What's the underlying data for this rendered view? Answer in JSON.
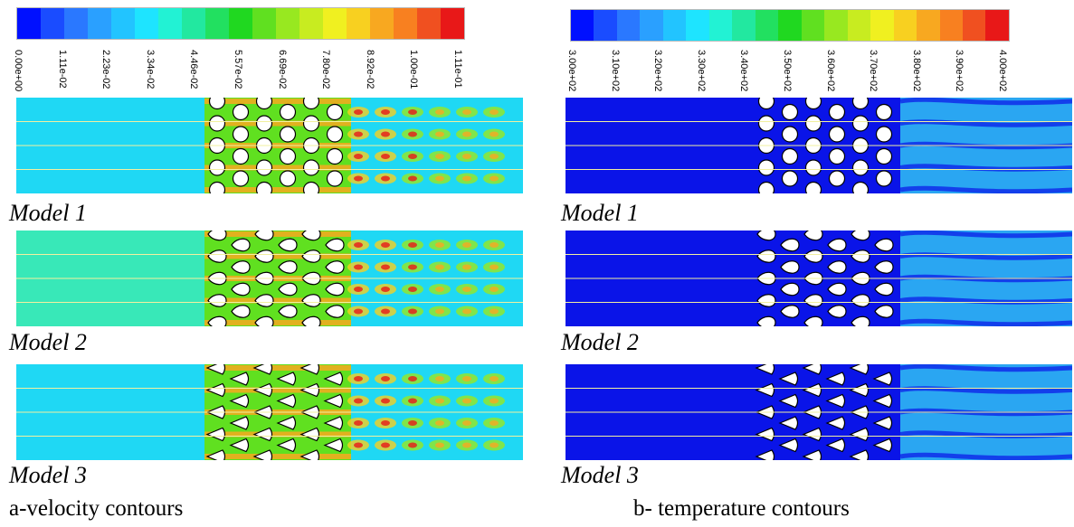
{
  "velocity": {
    "ticks": [
      "0.00e+00",
      "1.11e-02",
      "2.23e-02",
      "3.34e-02",
      "4.46e-02",
      "5.57e-02",
      "6.69e-02",
      "7.80e-02",
      "8.92e-02",
      "1.00e-01",
      "1.11e-01"
    ],
    "caption": "a-velocity contours",
    "models": [
      {
        "label": "Model 1",
        "shape": "circle",
        "inlet": "#1fd8f4"
      },
      {
        "label": "Model 2",
        "shape": "teardrop",
        "inlet": "#38e8b8"
      },
      {
        "label": "Model 3",
        "shape": "wedge",
        "inlet": "#1fd8f4"
      }
    ]
  },
  "temperature": {
    "ticks": [
      "3.00e+02",
      "3.10e+02",
      "3.20e+02",
      "3.30e+02",
      "3.40e+02",
      "3.50e+02",
      "3.60e+02",
      "3.70e+02",
      "3.80e+02",
      "3.90e+02",
      "4.00e+02"
    ],
    "caption": "b- temperature contours",
    "models": [
      {
        "label": "Model 1",
        "shape": "circle",
        "inlet": "#0a14e8"
      },
      {
        "label": "Model 2",
        "shape": "teardrop",
        "inlet": "#0a14e8"
      },
      {
        "label": "Model 3",
        "shape": "wedge",
        "inlet": "#0a14e8"
      }
    ]
  },
  "colormap": [
    "#0010ff",
    "#1a4cff",
    "#2a78ff",
    "#2aa0ff",
    "#22c4ff",
    "#1ee4ff",
    "#22f2d4",
    "#22e8a0",
    "#22e060",
    "#20d820",
    "#60e020",
    "#98e820",
    "#c8ec20",
    "#f0f020",
    "#f8d020",
    "#f8a820",
    "#f88020",
    "#f05020",
    "#e81818"
  ],
  "colors": {
    "velocity_field": "#1fd8f4",
    "temperature_field": "#2aa6f2",
    "wall_line": "#f2f0a0"
  }
}
